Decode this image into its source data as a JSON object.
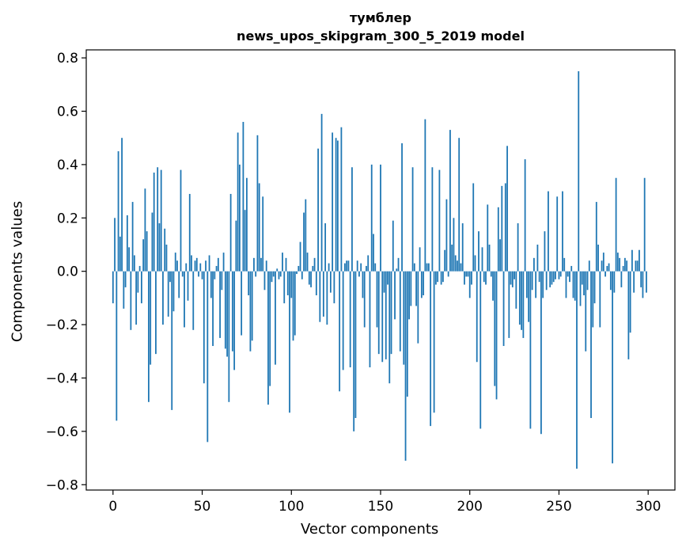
{
  "chart_data": {
    "type": "bar",
    "title_line1": "тумблер",
    "title_line2": "news_upos_skipgram_300_5_2019 model",
    "xlabel": "Vector components",
    "ylabel": "Components values",
    "xlim": [
      -15,
      315
    ],
    "ylim": [
      -0.82,
      0.83
    ],
    "x_ticks": [
      0,
      50,
      100,
      150,
      200,
      250,
      300
    ],
    "y_ticks": [
      -0.8,
      -0.6,
      -0.4,
      -0.2,
      0.0,
      0.2,
      0.4,
      0.6,
      0.8
    ],
    "y_tick_labels": [
      "−0.8",
      "−0.6",
      "−0.4",
      "−0.2",
      "0.0",
      "0.2",
      "0.4",
      "0.6",
      "0.8"
    ],
    "bar_color": "#1f77b4",
    "grid": false,
    "values": [
      -0.12,
      0.2,
      -0.56,
      0.45,
      0.13,
      0.5,
      -0.14,
      -0.06,
      0.21,
      0.09,
      -0.22,
      0.26,
      0.06,
      -0.2,
      -0.08,
      0.02,
      -0.12,
      0.12,
      0.31,
      0.15,
      -0.49,
      -0.35,
      0.22,
      0.37,
      -0.31,
      0.39,
      0.18,
      0.38,
      -0.2,
      0.16,
      0.1,
      -0.17,
      -0.04,
      -0.52,
      -0.15,
      0.07,
      0.04,
      -0.1,
      0.38,
      -0.02,
      -0.21,
      0.03,
      -0.11,
      0.29,
      0.06,
      -0.22,
      0.04,
      0.05,
      -0.02,
      0.03,
      -0.03,
      -0.42,
      0.04,
      -0.64,
      0.06,
      -0.1,
      -0.28,
      -0.03,
      0.02,
      0.05,
      -0.25,
      -0.07,
      0.07,
      -0.29,
      -0.32,
      -0.49,
      0.29,
      -0.3,
      -0.37,
      0.19,
      0.52,
      0.4,
      -0.24,
      0.56,
      0.23,
      0.35,
      -0.09,
      -0.3,
      -0.26,
      0.05,
      -0.02,
      0.51,
      0.33,
      0.05,
      0.28,
      -0.07,
      0.04,
      -0.5,
      -0.43,
      -0.04,
      -0.02,
      -0.35,
      0.01,
      -0.03,
      -0.02,
      0.07,
      -0.12,
      0.05,
      -0.09,
      -0.53,
      -0.1,
      -0.26,
      -0.24,
      -0.01,
      0.02,
      0.11,
      -0.03,
      0.22,
      0.27,
      0.07,
      -0.05,
      -0.06,
      0.02,
      0.05,
      -0.09,
      0.46,
      -0.19,
      0.59,
      -0.17,
      0.18,
      -0.2,
      0.03,
      -0.08,
      0.52,
      -0.12,
      0.5,
      0.49,
      -0.45,
      0.54,
      -0.37,
      0.03,
      0.04,
      0.04,
      -0.36,
      0.39,
      -0.6,
      -0.55,
      0.04,
      -0.02,
      0.03,
      -0.1,
      -0.21,
      0.02,
      0.06,
      -0.36,
      0.4,
      0.14,
      0.03,
      -0.21,
      -0.31,
      0.4,
      -0.34,
      -0.08,
      -0.33,
      -0.05,
      -0.42,
      -0.31,
      0.19,
      -0.18,
      0.01,
      0.05,
      -0.3,
      0.48,
      -0.35,
      -0.71,
      -0.47,
      -0.18,
      -0.13,
      0.39,
      0.03,
      -0.13,
      -0.27,
      0.09,
      -0.1,
      -0.09,
      0.57,
      0.03,
      0.03,
      -0.58,
      0.39,
      -0.53,
      -0.05,
      -0.04,
      0.38,
      -0.05,
      -0.04,
      0.08,
      0.27,
      -0.02,
      0.53,
      0.1,
      0.2,
      0.06,
      0.04,
      0.5,
      0.03,
      0.18,
      -0.05,
      -0.02,
      -0.02,
      -0.1,
      -0.05,
      0.33,
      0.06,
      -0.34,
      0.15,
      -0.59,
      0.09,
      -0.04,
      -0.05,
      0.25,
      0.1,
      -0.02,
      -0.11,
      -0.43,
      -0.48,
      0.24,
      0.12,
      0.32,
      -0.28,
      0.33,
      0.47,
      -0.25,
      -0.05,
      -0.06,
      -0.03,
      -0.14,
      0.18,
      -0.2,
      -0.22,
      -0.25,
      0.42,
      -0.1,
      -0.19,
      -0.59,
      -0.07,
      0.05,
      -0.1,
      0.1,
      -0.04,
      -0.61,
      -0.1,
      0.15,
      -0.07,
      0.3,
      -0.06,
      -0.05,
      -0.04,
      -0.03,
      0.28,
      -0.03,
      -0.02,
      0.3,
      0.05,
      -0.1,
      -0.02,
      -0.04,
      0.02,
      -0.1,
      -0.11,
      -0.74,
      0.75,
      -0.13,
      -0.05,
      -0.09,
      -0.3,
      -0.07,
      0.04,
      -0.55,
      -0.21,
      -0.12,
      0.26,
      0.1,
      -0.21,
      0.04,
      0.07,
      -0.02,
      0.02,
      0.03,
      -0.07,
      -0.72,
      -0.08,
      0.35,
      0.07,
      0.05,
      -0.06,
      0.02,
      0.05,
      0.04,
      -0.33,
      -0.23,
      0.08,
      -0.08,
      0.04,
      0.04,
      0.08,
      -0.06,
      -0.1,
      0.35,
      -0.08
    ]
  }
}
